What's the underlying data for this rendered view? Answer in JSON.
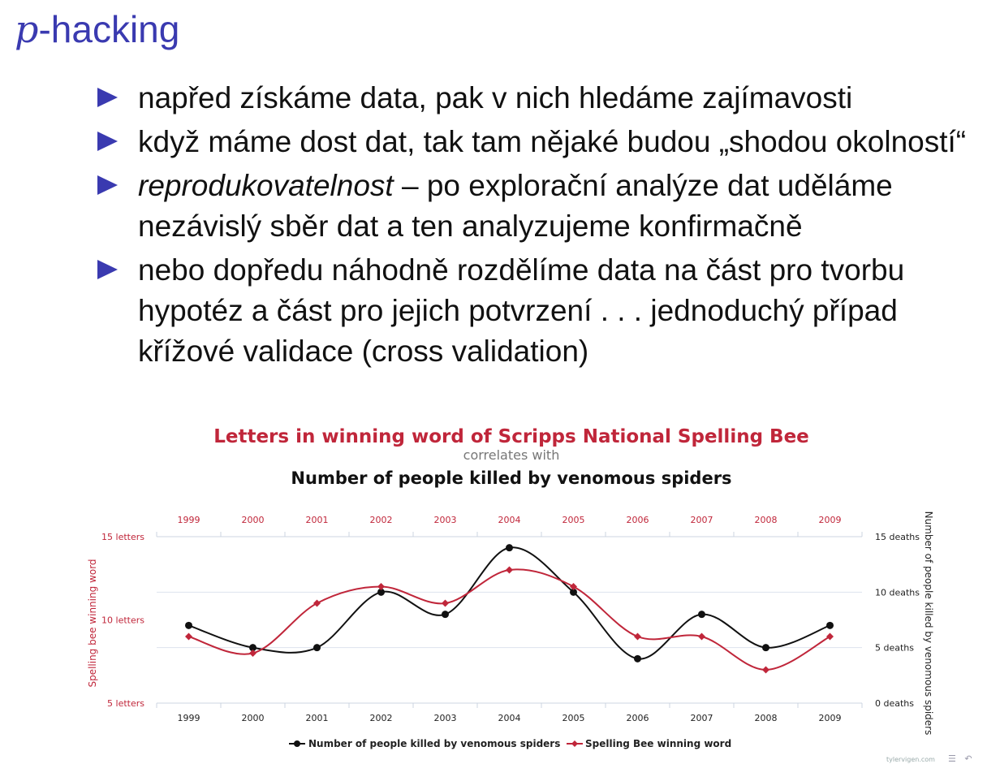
{
  "slide": {
    "title_p": "p",
    "title_rest": "-hacking",
    "bullets": [
      {
        "em": "",
        "text": "napřed získáme data, pak v nich hledáme zajímavosti"
      },
      {
        "em": "",
        "text": "když máme dost dat, tak tam nějaké budou „shodou okolností“"
      },
      {
        "em": "reprodukovatelnost",
        "text": " – po explorační analýze dat uděláme nezávislý sběr dat a ten analyzujeme konfirmačně"
      },
      {
        "em": "",
        "text": "nebo dopředu náhodně rozdělíme data na část pro tvorbu hypotéz a část pro jejich potvrzení . . .  jednoduchý případ křížové validace (cross validation)"
      }
    ],
    "watermark": "tylervigen.com",
    "icons": [
      "menu-icon",
      "undo-icon"
    ]
  },
  "chart_data": {
    "type": "line",
    "title": "Letters in winning word of Scripps National Spelling Bee",
    "subtitle": "correlates with",
    "title2": "Number of people killed by venomous spiders",
    "x": [
      "1999",
      "2000",
      "2001",
      "2002",
      "2003",
      "2004",
      "2005",
      "2006",
      "2007",
      "2008",
      "2009"
    ],
    "ylabel_left": "Spelling bee winning word",
    "ylabel_right": "Number of people killed by venomous spiders",
    "left_ticks": [
      "5 letters",
      "10 letters",
      "15 letters"
    ],
    "right_ticks": [
      "0 deaths",
      "5 deaths",
      "10 deaths",
      "15 deaths"
    ],
    "ylim_left": [
      5,
      15
    ],
    "ylim_right": [
      0,
      15
    ],
    "grid": true,
    "legend_position": "bottom",
    "colors": {
      "title": "#c0263a",
      "spiders": "#111111",
      "spelling": "#c0263a"
    },
    "series": [
      {
        "name": "Number of people killed by venomous spiders",
        "axis": "right",
        "values": [
          7,
          5,
          5,
          10,
          8,
          14,
          10,
          4,
          8,
          5,
          7
        ]
      },
      {
        "name": "Spelling Bee winning word",
        "axis": "left",
        "values": [
          9,
          8,
          11,
          12,
          11,
          13,
          12,
          9,
          9,
          7,
          9
        ]
      }
    ]
  }
}
